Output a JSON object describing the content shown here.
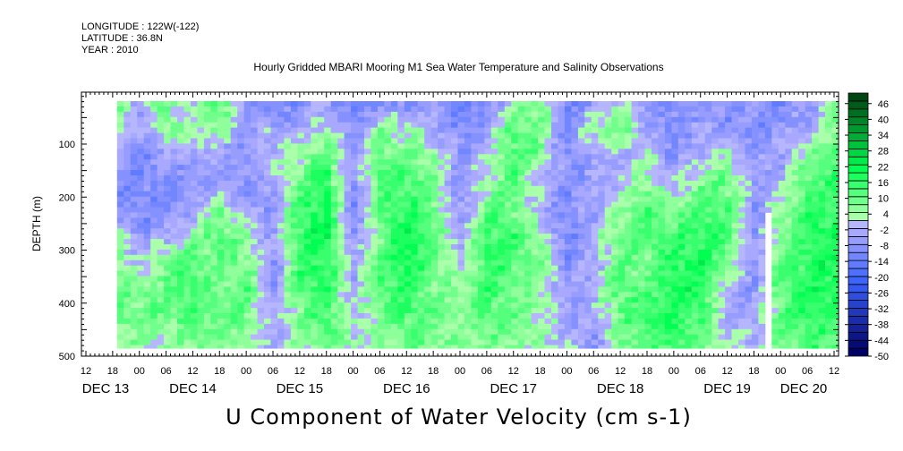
{
  "header": {
    "longitude": "LONGITUDE : 122W(-122)",
    "latitude": "LATITUDE : 36.8N",
    "year": "YEAR : 2010"
  },
  "chart_data": {
    "type": "heatmap",
    "title": "Hourly Gridded MBARI Mooring M1 Sea Water Temperature and Salinity Observations",
    "subtitle": "U Component of Water Velocity (cm s-1)",
    "ylabel": "DEPTH (m)",
    "ylim": [
      500,
      2
    ],
    "yticks": [
      100,
      200,
      300,
      400,
      500
    ],
    "xrange_hours_from_dec13_0000": [
      11,
      181
    ],
    "xtick_labels": [
      "12",
      "18",
      "00",
      "06",
      "12",
      "18",
      "00",
      "06",
      "12",
      "18",
      "00",
      "06",
      "12",
      "18",
      "00",
      "06",
      "12",
      "18",
      "00",
      "06",
      "12",
      "18",
      "00",
      "06",
      "12",
      "18",
      "00",
      "06",
      "12"
    ],
    "day_labels": [
      "DEC 13",
      "DEC 14",
      "DEC 15",
      "DEC 16",
      "DEC 17",
      "DEC 18",
      "DEC 19",
      "DEC 20"
    ],
    "data_start_hour": 19,
    "data_end_hour": 180,
    "column_hours": [
      18,
      24,
      30,
      36,
      42,
      48,
      54,
      60,
      66,
      72,
      78,
      84,
      90,
      96,
      102,
      108,
      114,
      120,
      126,
      132,
      138,
      144,
      150,
      156,
      162,
      168,
      174,
      180
    ],
    "depths": [
      25,
      75,
      125,
      175,
      225,
      275,
      325,
      375,
      425,
      475
    ],
    "data_depth_range": [
      19,
      485
    ],
    "values": [
      [
        12,
        8,
        -4,
        -8,
        -10,
        4,
        10,
        12,
        10,
        6
      ],
      [
        -4,
        -8,
        -10,
        -12,
        -10,
        -6,
        -2,
        6,
        10,
        4
      ],
      [
        10,
        6,
        -6,
        -8,
        -10,
        -4,
        8,
        10,
        8,
        4
      ],
      [
        -2,
        4,
        -4,
        -8,
        -6,
        4,
        12,
        14,
        12,
        8
      ],
      [
        14,
        4,
        -6,
        -4,
        6,
        12,
        8,
        6,
        10,
        8
      ],
      [
        -10,
        -6,
        -8,
        -6,
        -4,
        4,
        10,
        12,
        8,
        6
      ],
      [
        -12,
        -4,
        2,
        -6,
        -8,
        -6,
        -10,
        -8,
        -6,
        -4
      ],
      [
        -8,
        -6,
        4,
        10,
        14,
        16,
        14,
        12,
        8,
        4
      ],
      [
        -4,
        4,
        14,
        18,
        20,
        20,
        18,
        16,
        14,
        10
      ],
      [
        -14,
        -10,
        -8,
        -10,
        -12,
        -8,
        -6,
        -4,
        -2,
        4
      ],
      [
        -8,
        6,
        10,
        12,
        10,
        8,
        12,
        10,
        6,
        4
      ],
      [
        -10,
        4,
        10,
        14,
        18,
        20,
        20,
        16,
        14,
        10
      ],
      [
        -6,
        -4,
        6,
        8,
        10,
        12,
        10,
        8,
        10,
        8
      ],
      [
        -14,
        -10,
        -8,
        -10,
        -8,
        -4,
        -2,
        4,
        6,
        4
      ],
      [
        -10,
        -4,
        -2,
        4,
        10,
        14,
        16,
        14,
        12,
        8
      ],
      [
        4,
        12,
        14,
        12,
        10,
        14,
        12,
        10,
        8,
        6
      ],
      [
        10,
        8,
        6,
        -2,
        -4,
        4,
        8,
        6,
        4,
        2
      ],
      [
        -10,
        -12,
        -10,
        -8,
        -10,
        -12,
        -8,
        -6,
        -4,
        -2
      ],
      [
        -6,
        4,
        -4,
        -6,
        -4,
        -2,
        -4,
        -2,
        -6,
        -8
      ],
      [
        6,
        10,
        -4,
        -2,
        4,
        8,
        10,
        12,
        10,
        8
      ],
      [
        -8,
        -4,
        2,
        6,
        14,
        12,
        8,
        10,
        14,
        12
      ],
      [
        -12,
        -10,
        -8,
        -4,
        6,
        14,
        16,
        18,
        16,
        14
      ],
      [
        -6,
        -4,
        -2,
        8,
        14,
        16,
        18,
        16,
        14,
        10
      ],
      [
        -10,
        -8,
        4,
        10,
        12,
        14,
        8,
        -2,
        -4,
        2
      ],
      [
        -8,
        -10,
        -8,
        -6,
        -8,
        -10,
        -8,
        -6,
        -4,
        -2
      ],
      [
        -10,
        -6,
        -4,
        -2,
        4,
        8,
        10,
        12,
        10,
        8
      ],
      [
        -8,
        -4,
        6,
        12,
        14,
        16,
        16,
        18,
        16,
        14
      ],
      [
        6,
        8,
        12,
        14,
        16,
        18,
        18,
        16,
        14,
        12
      ]
    ],
    "missing": [
      {
        "hour": 165.5,
        "depth_from": 230,
        "depth_to": 500
      }
    ],
    "colorbar": {
      "min": -50,
      "max": 49,
      "step": 3,
      "labels": [
        "46",
        "40",
        "34",
        "28",
        "22",
        "16",
        "10",
        "4",
        "-2",
        "-8",
        "-14",
        "-20",
        "-26",
        "-32",
        "-38",
        "-44",
        "-50"
      ],
      "label_values": [
        46,
        40,
        34,
        28,
        22,
        16,
        10,
        4,
        -2,
        -8,
        -14,
        -20,
        -26,
        -32,
        -38,
        -44,
        -50
      ]
    }
  }
}
